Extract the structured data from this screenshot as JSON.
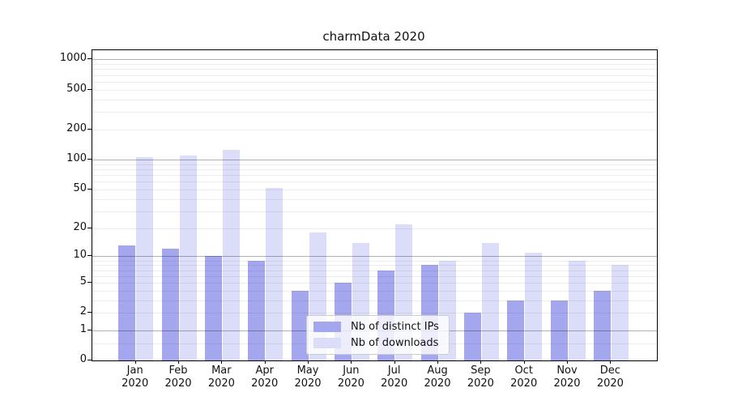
{
  "chart_data": {
    "type": "bar",
    "title": "charmData 2020",
    "categories": [
      "Jan 2020",
      "Feb 2020",
      "Mar 2020",
      "Apr 2020",
      "May 2020",
      "Jun 2020",
      "Jul 2020",
      "Aug 2020",
      "Sep 2020",
      "Oct 2020",
      "Nov 2020",
      "Dec 2020"
    ],
    "series": [
      {
        "name": "Nb of distinct IPs",
        "color": "#a4a7ee",
        "values": [
          13,
          12,
          10,
          9,
          4,
          5,
          7,
          8,
          2,
          3,
          3,
          4
        ]
      },
      {
        "name": "Nb of downloads",
        "color": "#dcdef9",
        "values": [
          105,
          110,
          125,
          52,
          18,
          14,
          22,
          9,
          14,
          11,
          9,
          8
        ]
      }
    ],
    "xlabel": "",
    "ylabel": "",
    "yscale": "log1p",
    "ylim": [
      0,
      1240
    ],
    "yticks": [
      0,
      1,
      2,
      5,
      10,
      20,
      50,
      100,
      200,
      500,
      1000
    ],
    "ytick_labels": [
      "0",
      "1",
      "2",
      "5",
      "10",
      "20",
      "50",
      "100",
      "200",
      "500",
      "1000"
    ],
    "major_gridlines": [
      1,
      10,
      100,
      1000
    ],
    "minor_gridlines": [
      0.5,
      2,
      5,
      3,
      4,
      6,
      7,
      8,
      9,
      20,
      50,
      30,
      40,
      60,
      70,
      80,
      90,
      200,
      500,
      300,
      400,
      600,
      700,
      800,
      900
    ],
    "grid": true,
    "legend_position": "lower-center",
    "legend": [
      "Nb of distinct IPs",
      "Nb of downloads"
    ]
  }
}
